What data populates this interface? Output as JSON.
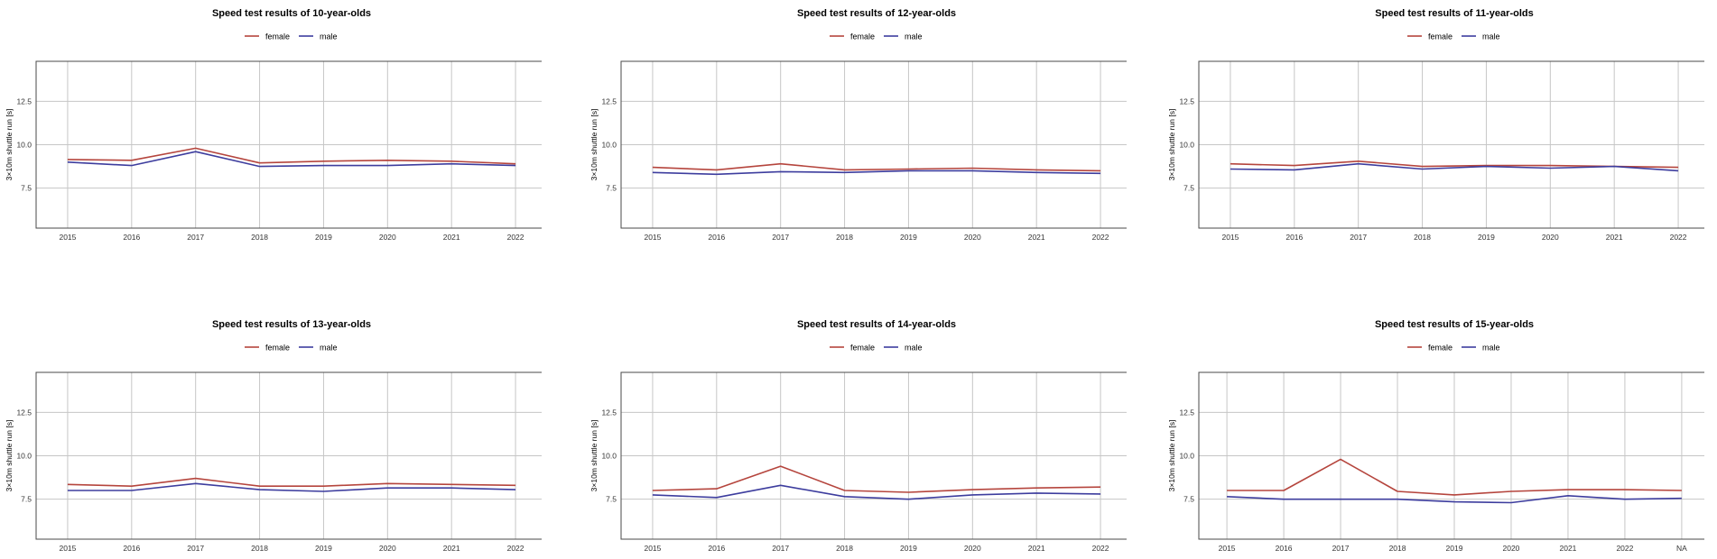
{
  "colors": {
    "female": "#b5453d",
    "male": "#3d3d9e",
    "grid": "#c6c6c6",
    "frame": "#4a4a4a"
  },
  "chart_data": [
    {
      "type": "line",
      "title": "Speed test results of 10-year-olds",
      "ylabel": "3×10m shuttle run [s]",
      "xlabel": "",
      "categories": [
        "2015",
        "2016",
        "2017",
        "2018",
        "2019",
        "2020",
        "2021",
        "2022"
      ],
      "yticks": [
        7.5,
        10.0,
        12.5
      ],
      "ylim": [
        5.2,
        14.8
      ],
      "grid": true,
      "legend": "top-center",
      "series": [
        {
          "name": "female",
          "values": [
            9.15,
            9.1,
            9.8,
            8.95,
            9.05,
            9.1,
            9.05,
            8.9
          ]
        },
        {
          "name": "male",
          "values": [
            9.0,
            8.8,
            9.6,
            8.75,
            8.8,
            8.8,
            8.9,
            8.8
          ]
        }
      ]
    },
    {
      "type": "line",
      "title": "Speed test results of 12-year-olds",
      "ylabel": "3×10m shuttle run [s]",
      "xlabel": "",
      "categories": [
        "2015",
        "2016",
        "2017",
        "2018",
        "2019",
        "2020",
        "2021",
        "2022"
      ],
      "yticks": [
        7.5,
        10.0,
        12.5
      ],
      "ylim": [
        5.2,
        14.8
      ],
      "grid": true,
      "legend": "top-center",
      "series": [
        {
          "name": "female",
          "values": [
            8.7,
            8.55,
            8.9,
            8.55,
            8.6,
            8.65,
            8.55,
            8.5
          ]
        },
        {
          "name": "male",
          "values": [
            8.4,
            8.3,
            8.45,
            8.4,
            8.5,
            8.5,
            8.4,
            8.35
          ]
        }
      ]
    },
    {
      "type": "line",
      "title": "Speed test results of 11-year-olds",
      "ylabel": "3×10m shuttle run [s]",
      "xlabel": "",
      "categories": [
        "2015",
        "2016",
        "2017",
        "2018",
        "2019",
        "2020",
        "2021",
        "2022"
      ],
      "yticks": [
        7.5,
        10.0,
        12.5
      ],
      "ylim": [
        5.2,
        14.8
      ],
      "grid": true,
      "legend": "top-center",
      "series": [
        {
          "name": "female",
          "values": [
            8.9,
            8.8,
            9.05,
            8.75,
            8.8,
            8.8,
            8.75,
            8.7
          ]
        },
        {
          "name": "male",
          "values": [
            8.6,
            8.55,
            8.9,
            8.6,
            8.75,
            8.65,
            8.75,
            8.5
          ]
        }
      ]
    },
    {
      "type": "line",
      "title": "Speed test results of 13-year-olds",
      "ylabel": "3×10m shuttle run [s]",
      "xlabel": "",
      "categories": [
        "2015",
        "2016",
        "2017",
        "2018",
        "2019",
        "2020",
        "2021",
        "2022"
      ],
      "yticks": [
        7.5,
        10.0,
        12.5
      ],
      "ylim": [
        5.2,
        14.8
      ],
      "grid": true,
      "legend": "top-center",
      "series": [
        {
          "name": "female",
          "values": [
            8.35,
            8.25,
            8.7,
            8.25,
            8.25,
            8.4,
            8.35,
            8.3
          ]
        },
        {
          "name": "male",
          "values": [
            8.0,
            8.0,
            8.4,
            8.05,
            7.95,
            8.15,
            8.15,
            8.05
          ]
        }
      ]
    },
    {
      "type": "line",
      "title": "Speed test results of 14-year-olds",
      "ylabel": "3×10m shuttle run [s]",
      "xlabel": "",
      "categories": [
        "2015",
        "2016",
        "2017",
        "2018",
        "2019",
        "2020",
        "2021",
        "2022"
      ],
      "yticks": [
        7.5,
        10.0,
        12.5
      ],
      "ylim": [
        5.2,
        14.8
      ],
      "grid": true,
      "legend": "top-center",
      "series": [
        {
          "name": "female",
          "values": [
            8.0,
            8.1,
            9.4,
            8.0,
            7.9,
            8.05,
            8.15,
            8.2
          ]
        },
        {
          "name": "male",
          "values": [
            7.75,
            7.6,
            8.3,
            7.65,
            7.5,
            7.75,
            7.85,
            7.8
          ]
        }
      ]
    },
    {
      "type": "line",
      "title": "Speed test results of 15-year-olds",
      "ylabel": "3×10m shuttle run [s]",
      "xlabel": "",
      "categories": [
        "2015",
        "2016",
        "2017",
        "2018",
        "2019",
        "2020",
        "2021",
        "2022",
        "NA"
      ],
      "yticks": [
        7.5,
        10.0,
        12.5
      ],
      "ylim": [
        5.2,
        14.8
      ],
      "grid": true,
      "legend": "top-center",
      "series": [
        {
          "name": "female",
          "values": [
            8.0,
            8.0,
            9.8,
            7.95,
            7.75,
            7.95,
            8.05,
            8.05,
            8.0
          ]
        },
        {
          "name": "male",
          "values": [
            7.65,
            7.5,
            7.5,
            7.5,
            7.35,
            7.3,
            7.7,
            7.5,
            7.55
          ]
        }
      ]
    }
  ]
}
